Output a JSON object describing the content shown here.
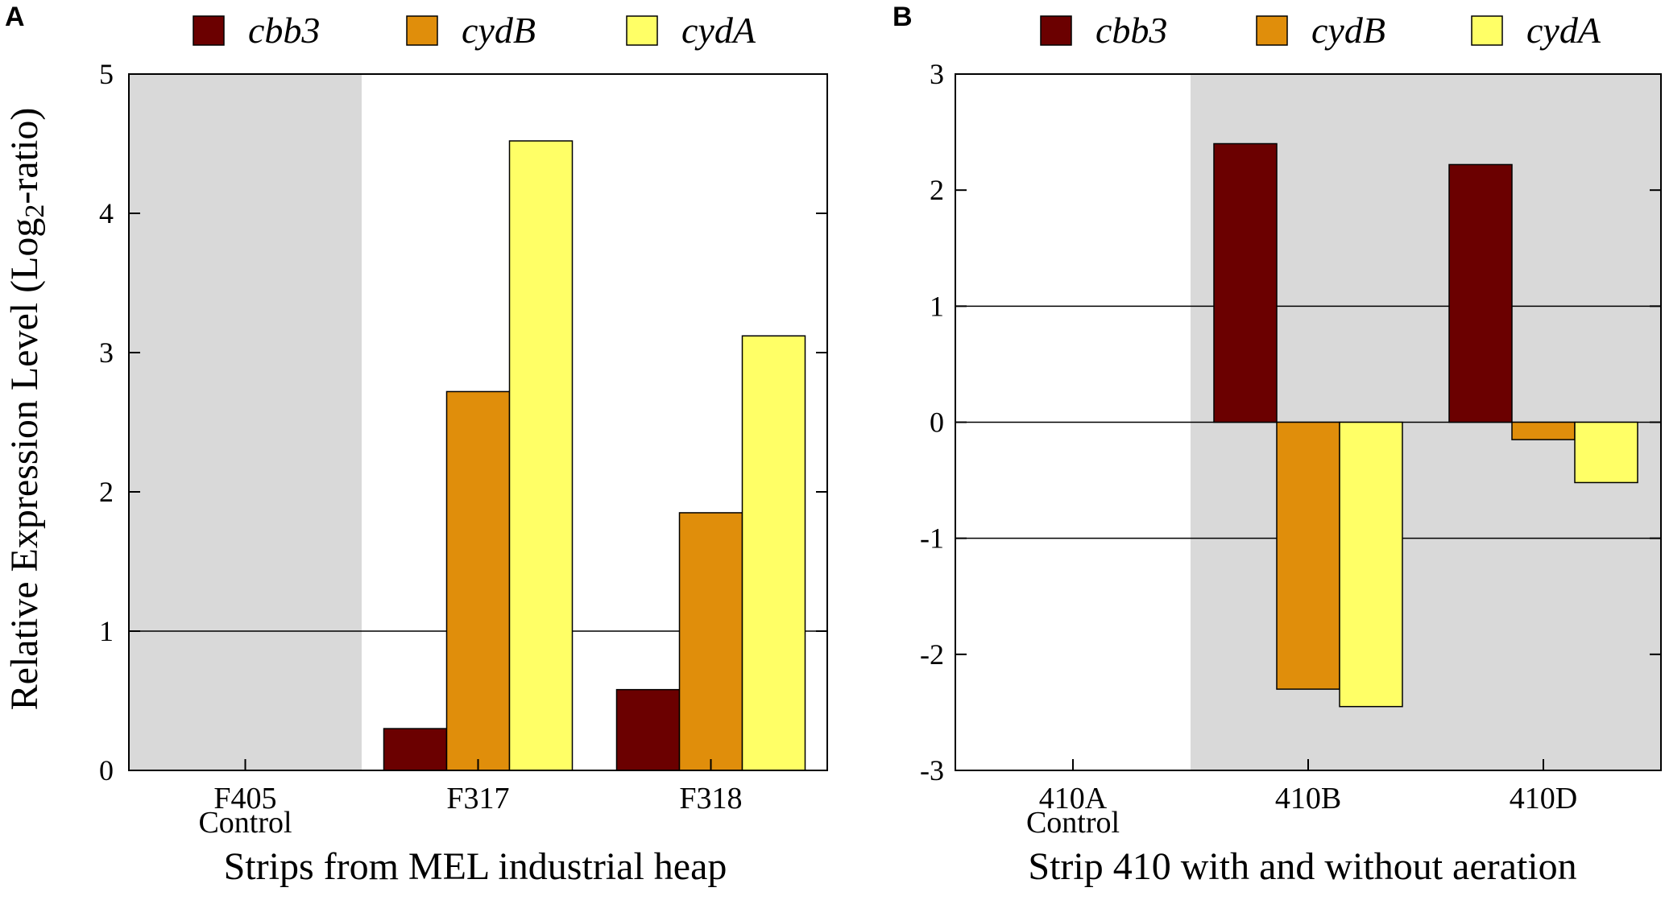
{
  "figure": {
    "ylabel": "Relative Expression Level (Log2-ratio)",
    "ylabel_parts": {
      "pre": "Relative Expression Level (Log",
      "sub": "2",
      "post": "-ratio)"
    }
  },
  "colors": {
    "cbb3": "#6b0000",
    "cydB": "#e08e0b",
    "cydA": "#ffff66",
    "shade": "#d9d9d9"
  },
  "chart_data": [
    {
      "panel": "A",
      "type": "bar",
      "title": "",
      "xlabel": "Strips from MEL industrial heap",
      "ylabel": "Relative Expression Level (Log2-ratio)",
      "ylim": [
        0,
        5
      ],
      "yticks": [
        0,
        1,
        2,
        3,
        4,
        5
      ],
      "ytick_labels": [
        "0",
        "1",
        "2",
        "3",
        "4",
        "5"
      ],
      "reference_line": 1,
      "categories": [
        "F405 Control",
        "F317",
        "F318"
      ],
      "category_labels": [
        [
          "F405",
          "Control"
        ],
        [
          "F317"
        ],
        [
          "F318"
        ]
      ],
      "shaded_categories": [
        0
      ],
      "legend": [
        "cbb3",
        "cydB",
        "cydA"
      ],
      "series": [
        {
          "name": "cbb3",
          "values": [
            null,
            0.3,
            0.58
          ]
        },
        {
          "name": "cydB",
          "values": [
            null,
            2.72,
            1.85
          ]
        },
        {
          "name": "cydA",
          "values": [
            null,
            4.52,
            3.12
          ]
        }
      ]
    },
    {
      "panel": "B",
      "type": "bar",
      "title": "",
      "xlabel": "Strip 410 with and without aeration",
      "ylabel": "",
      "ylim": [
        -3,
        3
      ],
      "yticks": [
        -3,
        -2,
        -1,
        0,
        1,
        2,
        3
      ],
      "ytick_labels": [
        "-3",
        "-2",
        "-1",
        "0",
        "1",
        "2",
        "3"
      ],
      "reference_lines": [
        1,
        0,
        -1
      ],
      "categories": [
        "410A Control",
        "410B",
        "410D"
      ],
      "category_labels": [
        [
          "410A",
          "Control"
        ],
        [
          "410B"
        ],
        [
          "410D"
        ]
      ],
      "shaded_categories": [
        1,
        2
      ],
      "legend": [
        "cbb3",
        "cydB",
        "cydA"
      ],
      "series": [
        {
          "name": "cbb3",
          "values": [
            null,
            2.4,
            2.22
          ]
        },
        {
          "name": "cydB",
          "values": [
            null,
            -2.3,
            -0.15
          ]
        },
        {
          "name": "cydA",
          "values": [
            null,
            -2.45,
            -0.52
          ]
        }
      ]
    }
  ]
}
